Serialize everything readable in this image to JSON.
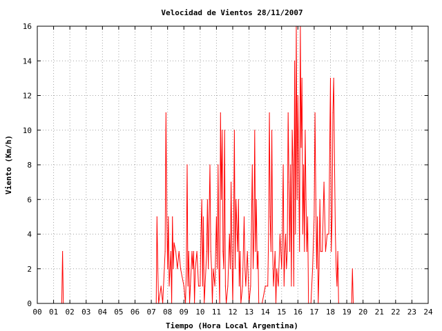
{
  "chart_data": {
    "type": "line",
    "title": "Velocidad de Vientos 28/11/2007",
    "xlabel": "Tiempo (Hora Local Argentina)",
    "ylabel": "Viento (Km/h)",
    "xlim": [
      0,
      24
    ],
    "ylim": [
      0,
      16
    ],
    "grid": true,
    "x_ticks": [
      "00",
      "01",
      "02",
      "03",
      "04",
      "05",
      "06",
      "07",
      "08",
      "09",
      "10",
      "11",
      "12",
      "13",
      "14",
      "15",
      "16",
      "17",
      "18",
      "19",
      "20",
      "21",
      "22",
      "23",
      "24"
    ],
    "y_ticks": [
      "0",
      "2",
      "4",
      "6",
      "8",
      "10",
      "12",
      "14",
      "16"
    ],
    "series": [
      {
        "color": "#ff0000",
        "points": [
          [
            0,
            0
          ],
          [
            1.5,
            0
          ],
          [
            1.55,
            3
          ],
          [
            1.6,
            0
          ],
          [
            7.3,
            0
          ],
          [
            7.35,
            5
          ],
          [
            7.4,
            2
          ],
          [
            7.45,
            0
          ],
          [
            7.6,
            1
          ],
          [
            7.7,
            0
          ],
          [
            7.85,
            3
          ],
          [
            7.9,
            11
          ],
          [
            7.95,
            5
          ],
          [
            8.0,
            2
          ],
          [
            8.05,
            5
          ],
          [
            8.1,
            1
          ],
          [
            8.2,
            3
          ],
          [
            8.25,
            0
          ],
          [
            8.3,
            5
          ],
          [
            8.35,
            2
          ],
          [
            8.4,
            3.5
          ],
          [
            8.5,
            3
          ],
          [
            8.6,
            2
          ],
          [
            8.7,
            3
          ],
          [
            8.8,
            2
          ],
          [
            9.0,
            1
          ],
          [
            9.1,
            0
          ],
          [
            9.15,
            2
          ],
          [
            9.2,
            8
          ],
          [
            9.25,
            1
          ],
          [
            9.3,
            3
          ],
          [
            9.35,
            0
          ],
          [
            9.4,
            1
          ],
          [
            9.5,
            3
          ],
          [
            9.55,
            2
          ],
          [
            9.6,
            3
          ],
          [
            9.65,
            0
          ],
          [
            9.7,
            2
          ],
          [
            9.8,
            3
          ],
          [
            9.9,
            1
          ],
          [
            10.0,
            1
          ],
          [
            10.05,
            4
          ],
          [
            10.1,
            6
          ],
          [
            10.15,
            1
          ],
          [
            10.2,
            5
          ],
          [
            10.25,
            0
          ],
          [
            10.3,
            1
          ],
          [
            10.4,
            3
          ],
          [
            10.45,
            6
          ],
          [
            10.5,
            2
          ],
          [
            10.6,
            8
          ],
          [
            10.65,
            3
          ],
          [
            10.7,
            2
          ],
          [
            10.75,
            0
          ],
          [
            10.8,
            2
          ],
          [
            10.9,
            1
          ],
          [
            11.0,
            5
          ],
          [
            11.05,
            2
          ],
          [
            11.1,
            8
          ],
          [
            11.15,
            2
          ],
          [
            11.2,
            0
          ],
          [
            11.25,
            11
          ],
          [
            11.3,
            6
          ],
          [
            11.35,
            10
          ],
          [
            11.4,
            3
          ],
          [
            11.45,
            2
          ],
          [
            11.5,
            10
          ],
          [
            11.55,
            1
          ],
          [
            11.6,
            0
          ],
          [
            11.7,
            1
          ],
          [
            11.8,
            4
          ],
          [
            11.85,
            2
          ],
          [
            11.9,
            7
          ],
          [
            11.95,
            3
          ],
          [
            12.0,
            0
          ],
          [
            12.05,
            4
          ],
          [
            12.1,
            10
          ],
          [
            12.15,
            2
          ],
          [
            12.2,
            6
          ],
          [
            12.3,
            3
          ],
          [
            12.35,
            6
          ],
          [
            12.4,
            1
          ],
          [
            12.45,
            3
          ],
          [
            12.5,
            0
          ],
          [
            12.6,
            1
          ],
          [
            12.7,
            5
          ],
          [
            12.75,
            2
          ],
          [
            12.8,
            1
          ],
          [
            12.9,
            3
          ],
          [
            13.0,
            0
          ],
          [
            13.1,
            1
          ],
          [
            13.2,
            8
          ],
          [
            13.25,
            2
          ],
          [
            13.3,
            4
          ],
          [
            13.35,
            10
          ],
          [
            13.4,
            3
          ],
          [
            13.45,
            6
          ],
          [
            13.5,
            2
          ],
          [
            13.55,
            3
          ],
          [
            13.6,
            0
          ],
          [
            13.8,
            0
          ],
          [
            14.0,
            1
          ],
          [
            14.15,
            1
          ],
          [
            14.2,
            4
          ],
          [
            14.25,
            11
          ],
          [
            14.3,
            5
          ],
          [
            14.35,
            3
          ],
          [
            14.4,
            10
          ],
          [
            14.45,
            3
          ],
          [
            14.5,
            1
          ],
          [
            14.6,
            3
          ],
          [
            14.65,
            0
          ],
          [
            14.7,
            2
          ],
          [
            14.8,
            1
          ],
          [
            14.9,
            4
          ],
          [
            15.0,
            2
          ],
          [
            15.05,
            4
          ],
          [
            15.1,
            8
          ],
          [
            15.15,
            1
          ],
          [
            15.2,
            3
          ],
          [
            15.25,
            4
          ],
          [
            15.3,
            2
          ],
          [
            15.35,
            3
          ],
          [
            15.4,
            11
          ],
          [
            15.45,
            7
          ],
          [
            15.5,
            3
          ],
          [
            15.55,
            8
          ],
          [
            15.6,
            1
          ],
          [
            15.65,
            10
          ],
          [
            15.7,
            8
          ],
          [
            15.75,
            1
          ],
          [
            15.8,
            14
          ],
          [
            15.85,
            4
          ],
          [
            15.9,
            16
          ],
          [
            15.95,
            6
          ],
          [
            16.0,
            12
          ],
          [
            16.05,
            8
          ],
          [
            16.1,
            3
          ],
          [
            16.15,
            16
          ],
          [
            16.2,
            9
          ],
          [
            16.25,
            13
          ],
          [
            16.3,
            4
          ],
          [
            16.35,
            8
          ],
          [
            16.4,
            3
          ],
          [
            16.45,
            10
          ],
          [
            16.5,
            6
          ],
          [
            16.55,
            3
          ],
          [
            16.6,
            5
          ],
          [
            16.65,
            0
          ],
          [
            16.8,
            0
          ],
          [
            16.9,
            2
          ],
          [
            17.0,
            5
          ],
          [
            17.05,
            11
          ],
          [
            17.1,
            6
          ],
          [
            17.15,
            2
          ],
          [
            17.2,
            5
          ],
          [
            17.25,
            0
          ],
          [
            17.3,
            2
          ],
          [
            17.35,
            6
          ],
          [
            17.4,
            3
          ],
          [
            17.5,
            3
          ],
          [
            17.6,
            7
          ],
          [
            17.7,
            3
          ],
          [
            17.8,
            4
          ],
          [
            17.9,
            4
          ],
          [
            18.0,
            13
          ],
          [
            18.05,
            3
          ],
          [
            18.1,
            5
          ],
          [
            18.15,
            11
          ],
          [
            18.2,
            13
          ],
          [
            18.25,
            8
          ],
          [
            18.3,
            4
          ],
          [
            18.35,
            2
          ],
          [
            18.4,
            1
          ],
          [
            18.45,
            3
          ],
          [
            18.5,
            0
          ],
          [
            19.3,
            0
          ],
          [
            19.35,
            2
          ],
          [
            19.4,
            0
          ],
          [
            24,
            0
          ]
        ]
      }
    ]
  }
}
